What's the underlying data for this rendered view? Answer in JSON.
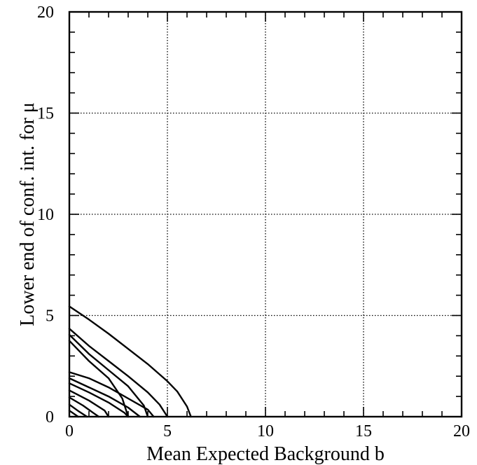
{
  "chart_data": {
    "type": "line",
    "xlabel": "Mean Expected Background b",
    "ylabel": "Lower end of conf. int. for μ",
    "xlim": [
      0,
      20
    ],
    "ylim": [
      0,
      20
    ],
    "xticks": [
      0,
      5,
      10,
      15,
      20
    ],
    "yticks": [
      0,
      5,
      10,
      15,
      20
    ],
    "x_minor_step": 1,
    "y_minor_step": 1,
    "grid": true,
    "series": [
      {
        "x": [
          0,
          1.0,
          2.0,
          3.0,
          4.0,
          5.0,
          5.5,
          6.0,
          6.2
        ],
        "y": [
          5.45,
          4.8,
          4.1,
          3.35,
          2.6,
          1.75,
          1.25,
          0.5,
          0.0
        ]
      },
      {
        "x": [
          0,
          1.0,
          2.0,
          3.0,
          4.0,
          4.6,
          5.0
        ],
        "y": [
          4.35,
          3.5,
          2.75,
          2.0,
          1.2,
          0.6,
          0.0
        ]
      },
      {
        "x": [
          0,
          1.0,
          2.0,
          3.0,
          3.8,
          4.0
        ],
        "y": [
          4.05,
          3.1,
          2.3,
          1.5,
          0.55,
          0.0
        ]
      },
      {
        "x": [
          0,
          1.0,
          2.0,
          2.7,
          3.0
        ],
        "y": [
          3.75,
          2.75,
          1.9,
          0.9,
          0.0
        ]
      },
      {
        "x": [
          0,
          1.0,
          2.0,
          3.0,
          4.0,
          4.3
        ],
        "y": [
          2.2,
          1.9,
          1.45,
          0.9,
          0.35,
          0.0
        ]
      },
      {
        "x": [
          0,
          1.0,
          2.0,
          3.0,
          3.6
        ],
        "y": [
          1.9,
          1.45,
          1.0,
          0.45,
          0.0
        ]
      },
      {
        "x": [
          0,
          1.0,
          2.0,
          2.8,
          3.0
        ],
        "y": [
          1.65,
          1.2,
          0.7,
          0.2,
          0.0
        ]
      },
      {
        "x": [
          0,
          1.0,
          1.8,
          2.0
        ],
        "y": [
          1.3,
          0.8,
          0.3,
          0.0
        ]
      },
      {
        "x": [
          0,
          0.7,
          1.2,
          1.5
        ],
        "y": [
          0.95,
          0.55,
          0.2,
          0.0
        ]
      },
      {
        "x": [
          0,
          0.5,
          0.9
        ],
        "y": [
          0.6,
          0.25,
          0.0
        ]
      },
      {
        "x": [
          0,
          0.45
        ],
        "y": [
          0.3,
          0.0
        ]
      }
    ]
  }
}
